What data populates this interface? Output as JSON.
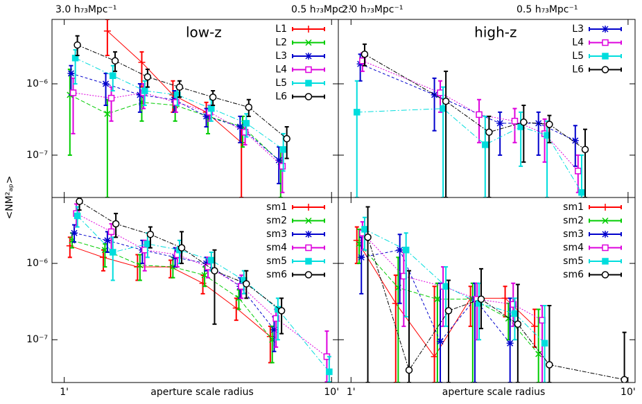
{
  "chart_data": [
    {
      "type": "line",
      "title": "low-z",
      "ylabel": "<NM²ₐₚ>",
      "top_labels": [
        "3.0 h₇₃Mpc⁻¹",
        "0.5 h₇₃Mpc⁻¹"
      ],
      "xscale": "log",
      "yscale": "log",
      "xlim": [
        0.9,
        10.6
      ],
      "ylim": [
        2.55e-08,
        8e-06
      ],
      "xticks": [
        1,
        10
      ],
      "yticks": [
        {
          "value": 1e-07,
          "label": "10⁻⁷"
        },
        {
          "value": 1e-06,
          "label": "10⁻⁶"
        }
      ],
      "legend": "upper right",
      "series": [
        {
          "name": "L1",
          "color": "#ff0000",
          "marker": "plus",
          "dash": "none",
          "x": [
            1.45,
            1.95,
            2.55,
            3.4,
            4.6
          ],
          "values": [
            5.5e-06,
            2e-06,
            7e-07,
            4e-07,
            1.5e-07
          ],
          "lo": [
            2.5e-06,
            9e-07,
            4e-07,
            2.5e-07,
            2.55e-08
          ],
          "hi": [
            8e-06,
            2.8e-06,
            1.1e-06,
            5.5e-07,
            2.5e-07
          ]
        },
        {
          "name": "L2",
          "color": "#00cc00",
          "marker": "x",
          "dash": "6,3",
          "x": [
            1.05,
            1.45,
            1.95,
            2.6,
            3.45,
            4.65,
            6.45
          ],
          "values": [
            7e-07,
            3.8e-07,
            5.5e-07,
            5e-07,
            3.5e-07,
            2.5e-07,
            8e-08
          ],
          "lo": [
            1e-07,
            2.55e-08,
            3e-07,
            3e-07,
            2e-07,
            1.3e-07,
            2.55e-08
          ],
          "hi": [
            1.6e-06,
            6e-07,
            8e-07,
            7e-07,
            4.5e-07,
            3.5e-07,
            1.3e-07
          ]
        },
        {
          "name": "L3",
          "color": "#0000cc",
          "marker": "star",
          "dash": "4,3",
          "x": [
            1.06,
            1.43,
            1.92,
            2.58,
            3.4,
            4.55,
            6.35
          ],
          "values": [
            1.4e-06,
            1e-06,
            7e-07,
            6e-07,
            3.5e-07,
            2.5e-07,
            8.5e-08
          ],
          "lo": [
            7e-07,
            5e-07,
            4e-07,
            4e-07,
            2.5e-07,
            1.5e-07,
            4e-08
          ],
          "hi": [
            1.8e-06,
            1.4e-06,
            1e-06,
            8e-07,
            4.5e-07,
            3.5e-07,
            1.3e-07
          ]
        },
        {
          "name": "L4",
          "color": "#dd00dd",
          "marker": "square",
          "dash": "2,2",
          "x": [
            1.08,
            1.5,
            1.98,
            2.62,
            3.5,
            4.75,
            6.55
          ],
          "values": [
            7.5e-07,
            6.3e-07,
            7.5e-07,
            5.5e-07,
            4e-07,
            2.1e-07,
            7e-08
          ],
          "lo": [
            2e-07,
            3e-07,
            4.5e-07,
            4e-07,
            3e-07,
            1.4e-07,
            3e-08
          ],
          "hi": [
            1.2e-06,
            9e-07,
            1e-06,
            7e-07,
            5e-07,
            3e-07,
            1.2e-07
          ]
        },
        {
          "name": "L5",
          "color": "#00dddd",
          "marker": "fsquare",
          "dash": "8,3,2,3",
          "x": [
            1.1,
            1.52,
            2.0,
            2.65,
            3.55,
            4.8,
            6.6
          ],
          "values": [
            2.3e-06,
            1.3e-06,
            8e-07,
            7e-07,
            4.5e-07,
            2.8e-07,
            1.2e-07
          ],
          "lo": [
            1e-06,
            8e-07,
            5e-07,
            5e-07,
            3e-07,
            1.8e-07,
            6e-08
          ],
          "hi": [
            3e-06,
            1.8e-06,
            1.1e-06,
            9e-07,
            6e-07,
            3.8e-07,
            2e-07
          ]
        },
        {
          "name": "L6",
          "color": "#000000",
          "marker": "circle",
          "dash": "6,2,2,2",
          "x": [
            1.12,
            1.55,
            2.05,
            2.7,
            3.6,
            4.9,
            6.8
          ],
          "values": [
            3.5e-06,
            2.1e-06,
            1.25e-06,
            9e-07,
            6.5e-07,
            4.7e-07,
            1.7e-07
          ],
          "lo": [
            2.5e-06,
            1.5e-06,
            9e-07,
            6.5e-07,
            5e-07,
            3.5e-07,
            9e-08
          ],
          "hi": [
            4.7e-06,
            2.8e-06,
            1.6e-06,
            1.1e-06,
            8e-07,
            6e-07,
            2.5e-07
          ]
        }
      ]
    },
    {
      "type": "line",
      "title": "high-z",
      "top_labels": [
        "2.0 h₇₃Mpc⁻¹",
        "0.5 h₇₃Mpc⁻¹"
      ],
      "xscale": "log",
      "yscale": "log",
      "xlim": [
        0.9,
        10.6
      ],
      "ylim": [
        2.55e-08,
        8e-06
      ],
      "xticks": [
        1,
        10
      ],
      "yticks": [
        1e-07,
        1e-06
      ],
      "legend": "upper right",
      "series": [
        {
          "name": "L3",
          "color": "#0000cc",
          "marker": "star",
          "dash": "4,3",
          "x": [
            1.08,
            2.0,
            3.45,
            4.75,
            6.45
          ],
          "values": [
            1.9e-06,
            7e-07,
            2.8e-07,
            2.8e-07,
            1.6e-07
          ],
          "lo": [
            1.1e-06,
            2.2e-07,
            1e-07,
            1e-07,
            7e-08
          ],
          "hi": [
            2.6e-06,
            1.2e-06,
            4e-07,
            4e-07,
            2.6e-07
          ]
        },
        {
          "name": "L4",
          "color": "#dd00dd",
          "marker": "square",
          "dash": "2,2",
          "x": [
            1.1,
            2.1,
            2.9,
            3.9,
            5.0,
            6.6
          ],
          "values": [
            2.1e-06,
            7.5e-07,
            3.7e-07,
            3e-07,
            2e-07,
            6e-08
          ],
          "lo": [
            1.5e-06,
            4e-07,
            1.5e-07,
            1.5e-07,
            8e-08,
            3e-08
          ],
          "hi": [
            2.7e-06,
            1.1e-06,
            6e-07,
            4.5e-07,
            3.2e-07,
            1e-07
          ]
        },
        {
          "name": "L5",
          "color": "#00dddd",
          "marker": "fsquare",
          "dash": "8,3,2,3",
          "x": [
            1.05,
            2.15,
            3.05,
            4.1,
            5.1,
            6.8
          ],
          "values": [
            4e-07,
            4.5e-07,
            1.4e-07,
            2.5e-07,
            1.9e-07,
            3e-08
          ],
          "lo": [
            2.55e-08,
            2.55e-08,
            2.55e-08,
            7e-08,
            2.55e-08,
            2.55e-08
          ],
          "hi": [
            1.1e-06,
            9e-07,
            3.5e-07,
            4e-07,
            3e-07,
            1e-07
          ]
        },
        {
          "name": "L6",
          "color": "#000000",
          "marker": "circle",
          "dash": "6,2,2,2",
          "x": [
            1.12,
            2.2,
            3.15,
            4.2,
            5.2,
            7.0
          ],
          "values": [
            2.6e-06,
            5.7e-07,
            2.1e-07,
            2.9e-07,
            2.7e-07,
            1.2e-07
          ],
          "lo": [
            1.8e-06,
            2.55e-08,
            2.55e-08,
            8e-08,
            1.5e-07,
            2.55e-08
          ],
          "hi": [
            3.6e-06,
            1.5e-06,
            3.5e-07,
            5e-07,
            3.6e-07,
            2.3e-07
          ]
        }
      ]
    },
    {
      "type": "line",
      "xlabel": "aperture scale radius",
      "xscale": "log",
      "yscale": "log",
      "xlim": [
        0.9,
        10.6
      ],
      "ylim": [
        2.75e-08,
        7.3e-06
      ],
      "xticks": [
        {
          "value": 1,
          "label": "1'"
        },
        {
          "value": 10,
          "label": "10'"
        }
      ],
      "yticks": [
        {
          "value": 1e-07,
          "label": "10⁻⁷"
        },
        {
          "value": 1e-06,
          "label": "10⁻⁶"
        }
      ],
      "legend": "upper right",
      "series": [
        {
          "name": "sm1",
          "color": "#ff0000",
          "marker": "plus",
          "dash": "none",
          "x": [
            1.05,
            1.4,
            1.88,
            2.5,
            3.3,
            4.4,
            5.9
          ],
          "values": [
            1.7e-06,
            1.2e-06,
            9e-07,
            9e-07,
            5.5e-07,
            2.6e-07,
            1.1e-07
          ],
          "lo": [
            1.2e-06,
            8e-07,
            6e-07,
            6.5e-07,
            4e-07,
            1.8e-07,
            5e-08
          ],
          "hi": [
            2.2e-06,
            1.5e-06,
            1.3e-06,
            1.1e-06,
            7e-07,
            3.5e-07,
            1.5e-07
          ]
        },
        {
          "name": "sm2",
          "color": "#00cc00",
          "marker": "x",
          "dash": "6,3",
          "x": [
            1.07,
            1.42,
            1.92,
            2.55,
            3.35,
            4.5,
            6.0
          ],
          "values": [
            2e-06,
            1.5e-06,
            9.5e-07,
            9e-07,
            7e-07,
            3.5e-07,
            1e-07
          ],
          "lo": [
            1.6e-06,
            9e-07,
            6e-07,
            6.5e-07,
            5e-07,
            2.5e-07,
            5e-08
          ],
          "hi": [
            2.5e-06,
            1.8e-06,
            1.3e-06,
            1.2e-06,
            9e-07,
            4.5e-07,
            1.5e-07
          ]
        },
        {
          "name": "sm3",
          "color": "#0000cc",
          "marker": "star",
          "dash": "4,3",
          "x": [
            1.09,
            1.45,
            1.96,
            2.6,
            3.4,
            4.55,
            6.1
          ],
          "values": [
            2.5e-06,
            2e-06,
            1.5e-06,
            1.2e-06,
            1e-06,
            5e-07,
            1.35e-07
          ],
          "lo": [
            1.9e-06,
            1.4e-06,
            1e-06,
            9e-07,
            8e-07,
            3.5e-07,
            7e-08
          ],
          "hi": [
            3.2e-06,
            2.6e-06,
            2e-06,
            1.6e-06,
            1.2e-06,
            6.5e-07,
            2e-07
          ]
        },
        {
          "name": "sm4",
          "color": "#dd00dd",
          "marker": "square",
          "dash": "2,2",
          "x": [
            1.11,
            1.5,
            2.0,
            2.65,
            3.45,
            4.6,
            6.2,
            9.6
          ],
          "values": [
            4.5e-06,
            2.6e-06,
            1.5e-06,
            1.3e-06,
            9e-07,
            5e-07,
            1.9e-07,
            6e-08
          ],
          "lo": [
            3e-06,
            1.5e-06,
            8e-07,
            9e-07,
            6.5e-07,
            3.5e-07,
            8e-08,
            2.8e-08
          ],
          "hi": [
            6e-06,
            3.3e-06,
            2e-06,
            1.6e-06,
            1.2e-06,
            7e-07,
            2.5e-07,
            1.3e-07
          ]
        },
        {
          "name": "sm5",
          "color": "#00dddd",
          "marker": "fsquare",
          "dash": "8,3,2,3",
          "x": [
            1.12,
            1.52,
            2.05,
            2.7,
            3.55,
            4.7,
            6.3,
            9.8
          ],
          "values": [
            4.2e-06,
            1.4e-06,
            1.8e-06,
            1.5e-06,
            1.1e-06,
            6e-07,
            2.5e-07,
            3.8e-08
          ],
          "lo": [
            3e-06,
            6e-07,
            1.2e-06,
            1e-06,
            8e-07,
            4e-07,
            1e-07,
            2.8e-08
          ],
          "hi": [
            5.5e-06,
            2.2e-06,
            2.5e-06,
            2e-06,
            1.4e-06,
            8e-07,
            3.5e-07,
            6e-08
          ]
        },
        {
          "name": "sm6",
          "color": "#000000",
          "marker": "circle",
          "dash": "6,2,2,2",
          "x": [
            1.14,
            1.56,
            2.1,
            2.75,
            3.65,
            4.8,
            6.5
          ],
          "values": [
            6.5e-06,
            3.3e-06,
            2.4e-06,
            1.6e-06,
            8e-07,
            5.4e-07,
            2.4e-07
          ],
          "lo": [
            5e-06,
            2.2e-06,
            1.6e-06,
            1e-06,
            1.6e-07,
            3.5e-07,
            1.2e-07
          ],
          "hi": [
            7.3e-06,
            4.5e-06,
            3e-06,
            2.6e-06,
            1.5e-06,
            8e-07,
            3.5e-07
          ]
        }
      ]
    },
    {
      "type": "line",
      "xlabel": "aperture scale radius",
      "xscale": "log",
      "yscale": "log",
      "xlim": [
        0.9,
        10.6
      ],
      "ylim": [
        2.75e-08,
        7.3e-06
      ],
      "xticks": [
        {
          "value": 1,
          "label": "1'"
        },
        {
          "value": 10,
          "label": "10'"
        }
      ],
      "yticks": [
        1e-07,
        1e-06
      ],
      "legend": "upper right",
      "series": [
        {
          "name": "sm1",
          "color": "#ff0000",
          "marker": "plus",
          "dash": "none",
          "x": [
            1.05,
            1.45,
            2.0,
            2.7,
            3.6,
            4.6
          ],
          "values": [
            2e-06,
            3e-07,
            6e-08,
            3.5e-07,
            3.5e-07,
            1.5e-07
          ],
          "lo": [
            1e-06,
            2.75e-08,
            2.75e-08,
            1.5e-07,
            2e-07,
            8e-08
          ],
          "hi": [
            3e-06,
            7e-07,
            5e-07,
            5e-07,
            5e-07,
            2.5e-07
          ]
        },
        {
          "name": "sm2",
          "color": "#00cc00",
          "marker": "x",
          "dash": "6,3",
          "x": [
            1.07,
            1.48,
            2.05,
            2.75,
            3.7,
            4.75
          ],
          "values": [
            1.8e-06,
            4.8e-07,
            3.4e-07,
            3.4e-07,
            1.9e-07,
            6.5e-08
          ],
          "lo": [
            1e-06,
            2.75e-08,
            2.75e-08,
            2.75e-08,
            1e-07,
            2.75e-08
          ],
          "hi": [
            2.8e-06,
            1.2e-06,
            5.5e-07,
            5.5e-07,
            3e-07,
            2.5e-07
          ]
        },
        {
          "name": "sm3",
          "color": "#0000cc",
          "marker": "star",
          "dash": "4,3",
          "x": [
            1.09,
            1.5,
            2.1,
            2.8,
            3.75
          ],
          "values": [
            1.2e-06,
            1.5e-06,
            9.5e-08,
            3.4e-07,
            9e-08
          ],
          "lo": [
            4e-07,
            3e-07,
            2.75e-08,
            2.75e-08,
            2.75e-08
          ],
          "hi": [
            2.2e-06,
            2.4e-06,
            5.5e-07,
            5.5e-07,
            3.5e-07
          ]
        },
        {
          "name": "sm4",
          "color": "#dd00dd",
          "marker": "square",
          "dash": "2,2",
          "x": [
            1.1,
            1.55,
            2.15,
            2.85,
            3.85,
            4.9
          ],
          "values": [
            2.5e-06,
            6.8e-07,
            5e-07,
            3.4e-07,
            2.9e-07,
            1.8e-07
          ],
          "lo": [
            1.5e-06,
            1.5e-07,
            1.5e-07,
            1e-07,
            1.5e-07,
            2.75e-08
          ],
          "hi": [
            3.5e-06,
            1.4e-06,
            9e-07,
            5.5e-07,
            5.5e-07,
            2.8e-07
          ]
        },
        {
          "name": "sm5",
          "color": "#00dddd",
          "marker": "fsquare",
          "dash": "8,3,2,3",
          "x": [
            1.12,
            1.58,
            2.2,
            2.9,
            3.9,
            5.0
          ],
          "values": [
            2.8e-06,
            1.5e-06,
            5e-07,
            3e-07,
            2.2e-07,
            9e-08
          ],
          "lo": [
            1.5e-06,
            2e-07,
            1.5e-07,
            1e-07,
            1e-07,
            2.75e-08
          ],
          "hi": [
            4e-06,
            2.5e-06,
            9e-07,
            5.5e-07,
            3.5e-07,
            2.8e-07
          ]
        },
        {
          "name": "sm6",
          "color": "#000000",
          "marker": "circle",
          "dash": "6,2,2,2",
          "x": [
            1.15,
            1.62,
            2.25,
            2.95,
            4.0,
            5.2,
            9.7
          ],
          "values": [
            2.2e-06,
            4e-08,
            2.4e-07,
            3.4e-07,
            1.6e-07,
            4.7e-08,
            3e-08
          ],
          "lo": [
            2.75e-08,
            2.75e-08,
            2.75e-08,
            1.4e-07,
            2.75e-08,
            2.75e-08,
            2.75e-08
          ],
          "hi": [
            5.5e-06,
            8e-07,
            6e-07,
            8.5e-07,
            5.3e-07,
            2.8e-07,
            1.25e-07
          ]
        }
      ]
    }
  ]
}
